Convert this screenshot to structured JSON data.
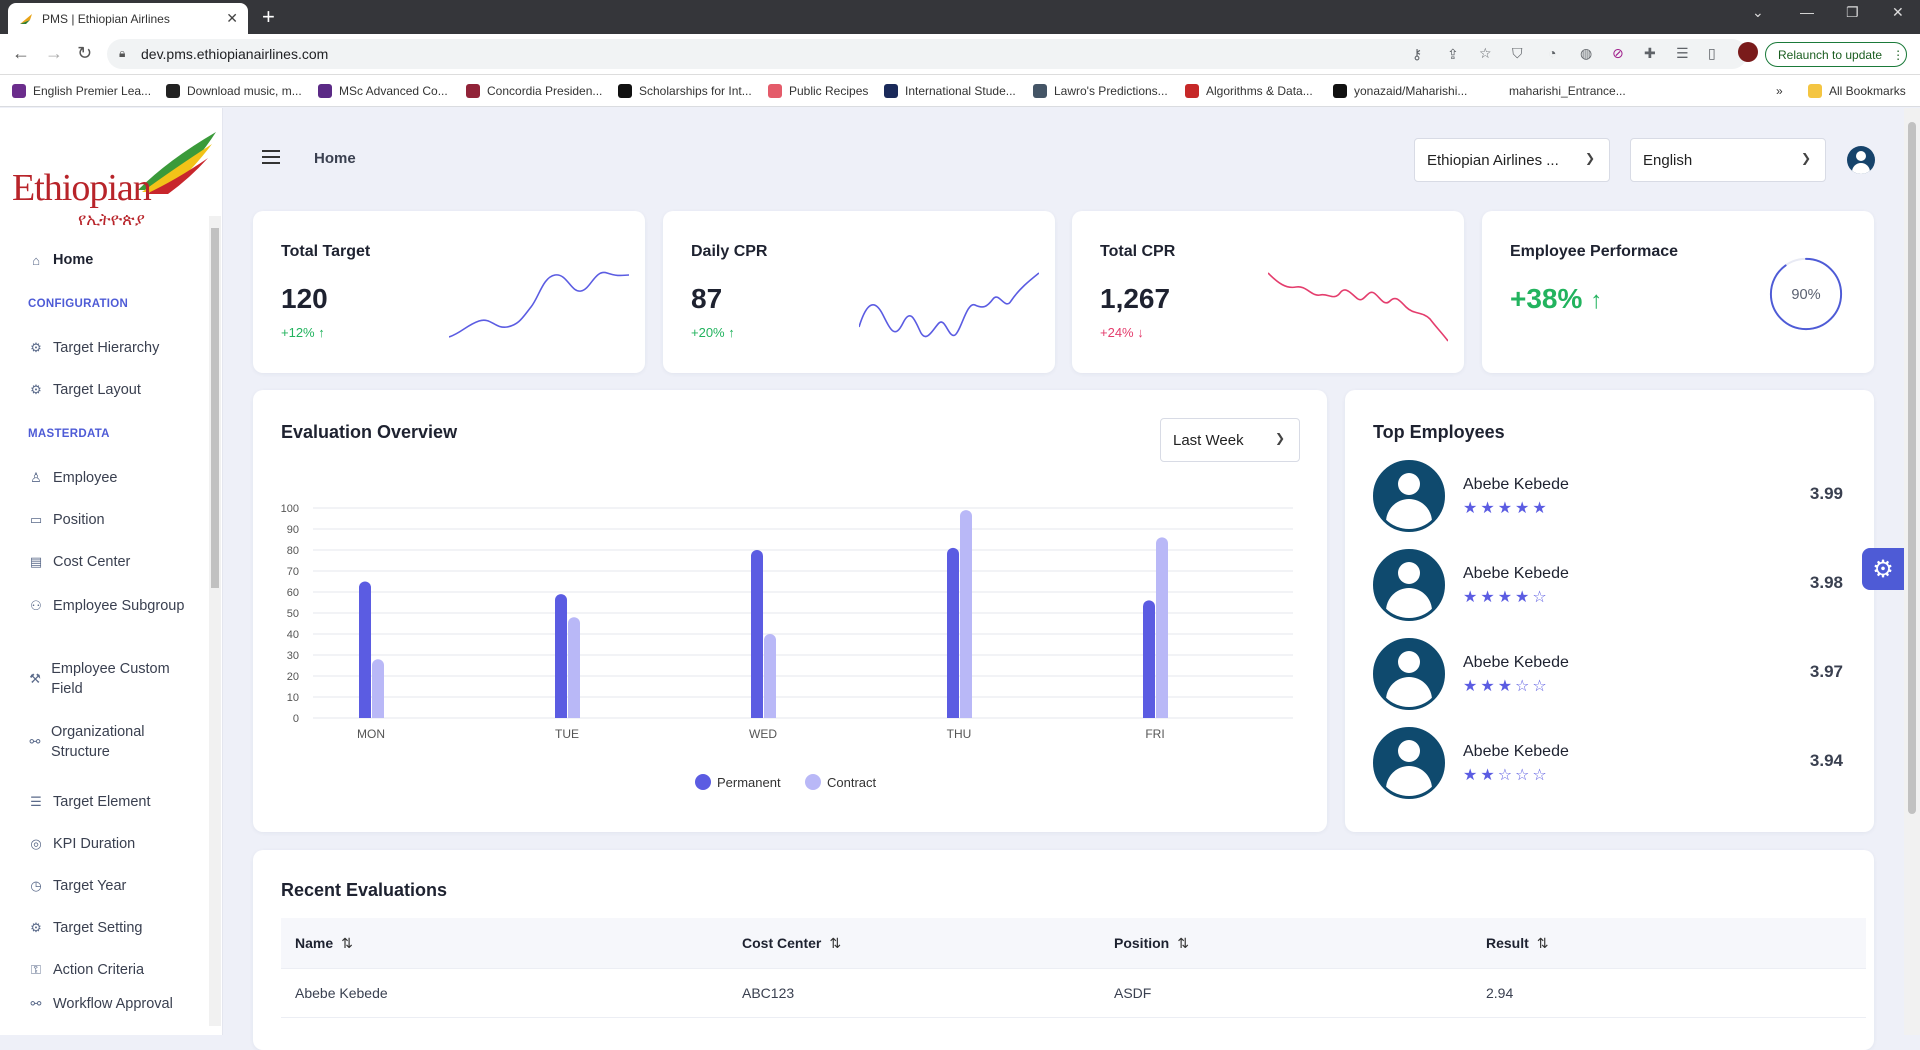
{
  "browser": {
    "tab_title": "PMS | Ethiopian Airlines",
    "url": "dev.pms.ethiopianairlines.com",
    "relaunch_label": "Relaunch to update",
    "bookmarks": [
      {
        "label": "English Premier Lea...",
        "color": "#6b2d8c"
      },
      {
        "label": "Download music, m...",
        "color": "#222222"
      },
      {
        "label": "MSc Advanced Co...",
        "color": "#5b2a86"
      },
      {
        "label": "Concordia Presiden...",
        "color": "#912338"
      },
      {
        "label": "Scholarships for Int...",
        "color": "#111111"
      },
      {
        "label": "Public Recipes",
        "color": "#e45b6a"
      },
      {
        "label": "International Stude...",
        "color": "#1a2a5a"
      },
      {
        "label": "Lawro's Predictions...",
        "color": "#445566"
      },
      {
        "label": "Algorithms & Data...",
        "color": "#c62828"
      },
      {
        "label": "yonazaid/Maharishi...",
        "color": "#111111"
      },
      {
        "label": "maharishi_Entrance...",
        "color": "#ffffff"
      }
    ],
    "all_bookmarks": "All Bookmarks"
  },
  "logo": {
    "text": "Ethiopian",
    "sub": "የኢትዮጵያ"
  },
  "sidebar": {
    "home": "Home",
    "sections": [
      {
        "title": "CONFIGURATION",
        "items": [
          "Target Hierarchy",
          "Target Layout"
        ]
      },
      {
        "title": "MASTERDATA",
        "items": [
          "Employee",
          "Position",
          "Cost Center",
          "Employee Subgroup",
          "Employee Custom Field",
          "Organizational Structure",
          "Target Element",
          "KPI Duration",
          "Target Year",
          "Target Setting",
          "Action Criteria",
          "Workflow Approval"
        ]
      }
    ]
  },
  "header": {
    "breadcrumb": "Home",
    "company_select": "Ethiopian Airlines ...",
    "language_select": "English"
  },
  "stats": [
    {
      "title": "Total Target",
      "value": "120",
      "delta": "+12%",
      "direction": "up"
    },
    {
      "title": "Daily CPR",
      "value": "87",
      "delta": "+20%",
      "direction": "up"
    },
    {
      "title": "Total CPR",
      "value": "1,267",
      "delta": "+24%",
      "direction": "down"
    },
    {
      "title": "Employee Performace",
      "value": "+38%",
      "ring_label": "90%",
      "ring_fraction": 0.9
    }
  ],
  "evaluation": {
    "title": "Evaluation Overview",
    "period": "Last Week"
  },
  "chart_data": {
    "type": "bar",
    "categories": [
      "MON",
      "TUE",
      "WED",
      "THU",
      "FRI"
    ],
    "series": [
      {
        "name": "Permanent",
        "values": [
          65,
          59,
          80,
          81,
          56
        ],
        "color": "#5b5ce2"
      },
      {
        "name": "Contract",
        "values": [
          28,
          48,
          40,
          99,
          86
        ],
        "color": "#b9b8f7"
      }
    ],
    "ylim": [
      0,
      100
    ],
    "yticks": [
      0,
      10,
      20,
      30,
      40,
      50,
      60,
      70,
      80,
      90,
      100
    ],
    "legend": "bottom",
    "grid": true
  },
  "top_employees": {
    "title": "Top Employees",
    "list": [
      {
        "name": "Abebe Kebede",
        "stars": "★★★★★",
        "score": "3.99"
      },
      {
        "name": "Abebe Kebede",
        "stars": "★★★★☆",
        "score": "3.98"
      },
      {
        "name": "Abebe Kebede",
        "stars": "★★★☆☆",
        "score": "3.97"
      },
      {
        "name": "Abebe Kebede",
        "stars": "★★☆☆☆",
        "score": "3.94"
      }
    ]
  },
  "recent": {
    "title": "Recent Evaluations",
    "columns": [
      "Name",
      "Cost Center",
      "Position",
      "Result"
    ],
    "rows": [
      [
        "Abebe Kebede",
        "ABC123",
        "ASDF",
        "2.94"
      ]
    ]
  },
  "colors": {
    "accent": "#4e5bd6",
    "up": "#22b35e",
    "down": "#e43d6d",
    "avatar": "#0f4a6e"
  }
}
